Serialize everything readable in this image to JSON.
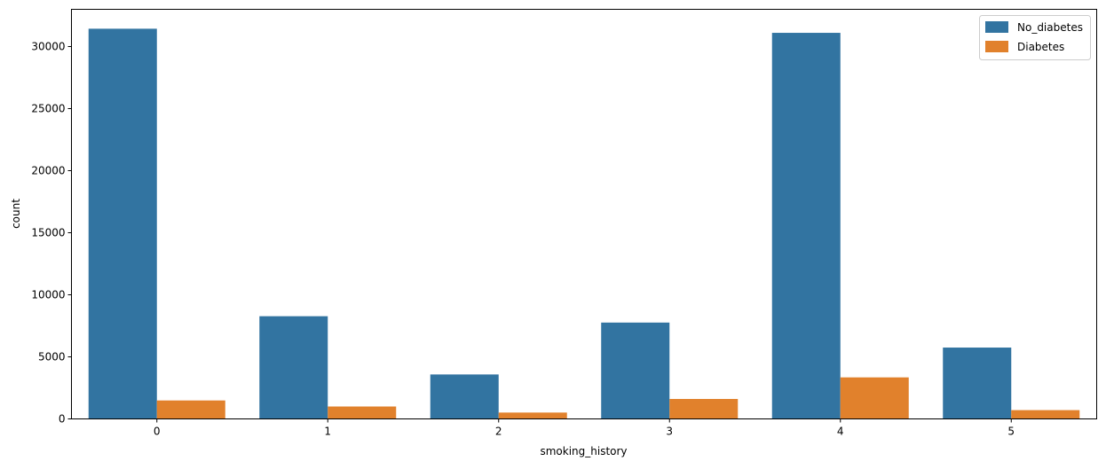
{
  "chart_data": {
    "type": "bar",
    "categories": [
      "0",
      "1",
      "2",
      "3",
      "4",
      "5"
    ],
    "series": [
      {
        "name": "No_diabetes",
        "color": "#3274a1",
        "values": [
          31436,
          8274,
          3581,
          7762,
          31104,
          5748
        ]
      },
      {
        "name": "Diabetes",
        "color": "#e1812c",
        "values": [
          1487,
          1000,
          511,
          1608,
          3346,
          708
        ]
      }
    ],
    "xlabel": "smoking_history",
    "ylabel": "count",
    "ylim": [
      0,
      33000
    ],
    "yticks": [
      0,
      5000,
      10000,
      15000,
      20000,
      25000,
      30000
    ],
    "ytick_labels": [
      "0",
      "5000",
      "10000",
      "15000",
      "20000",
      "25000",
      "30000"
    ],
    "grid": false,
    "legend_position": "top-right"
  }
}
